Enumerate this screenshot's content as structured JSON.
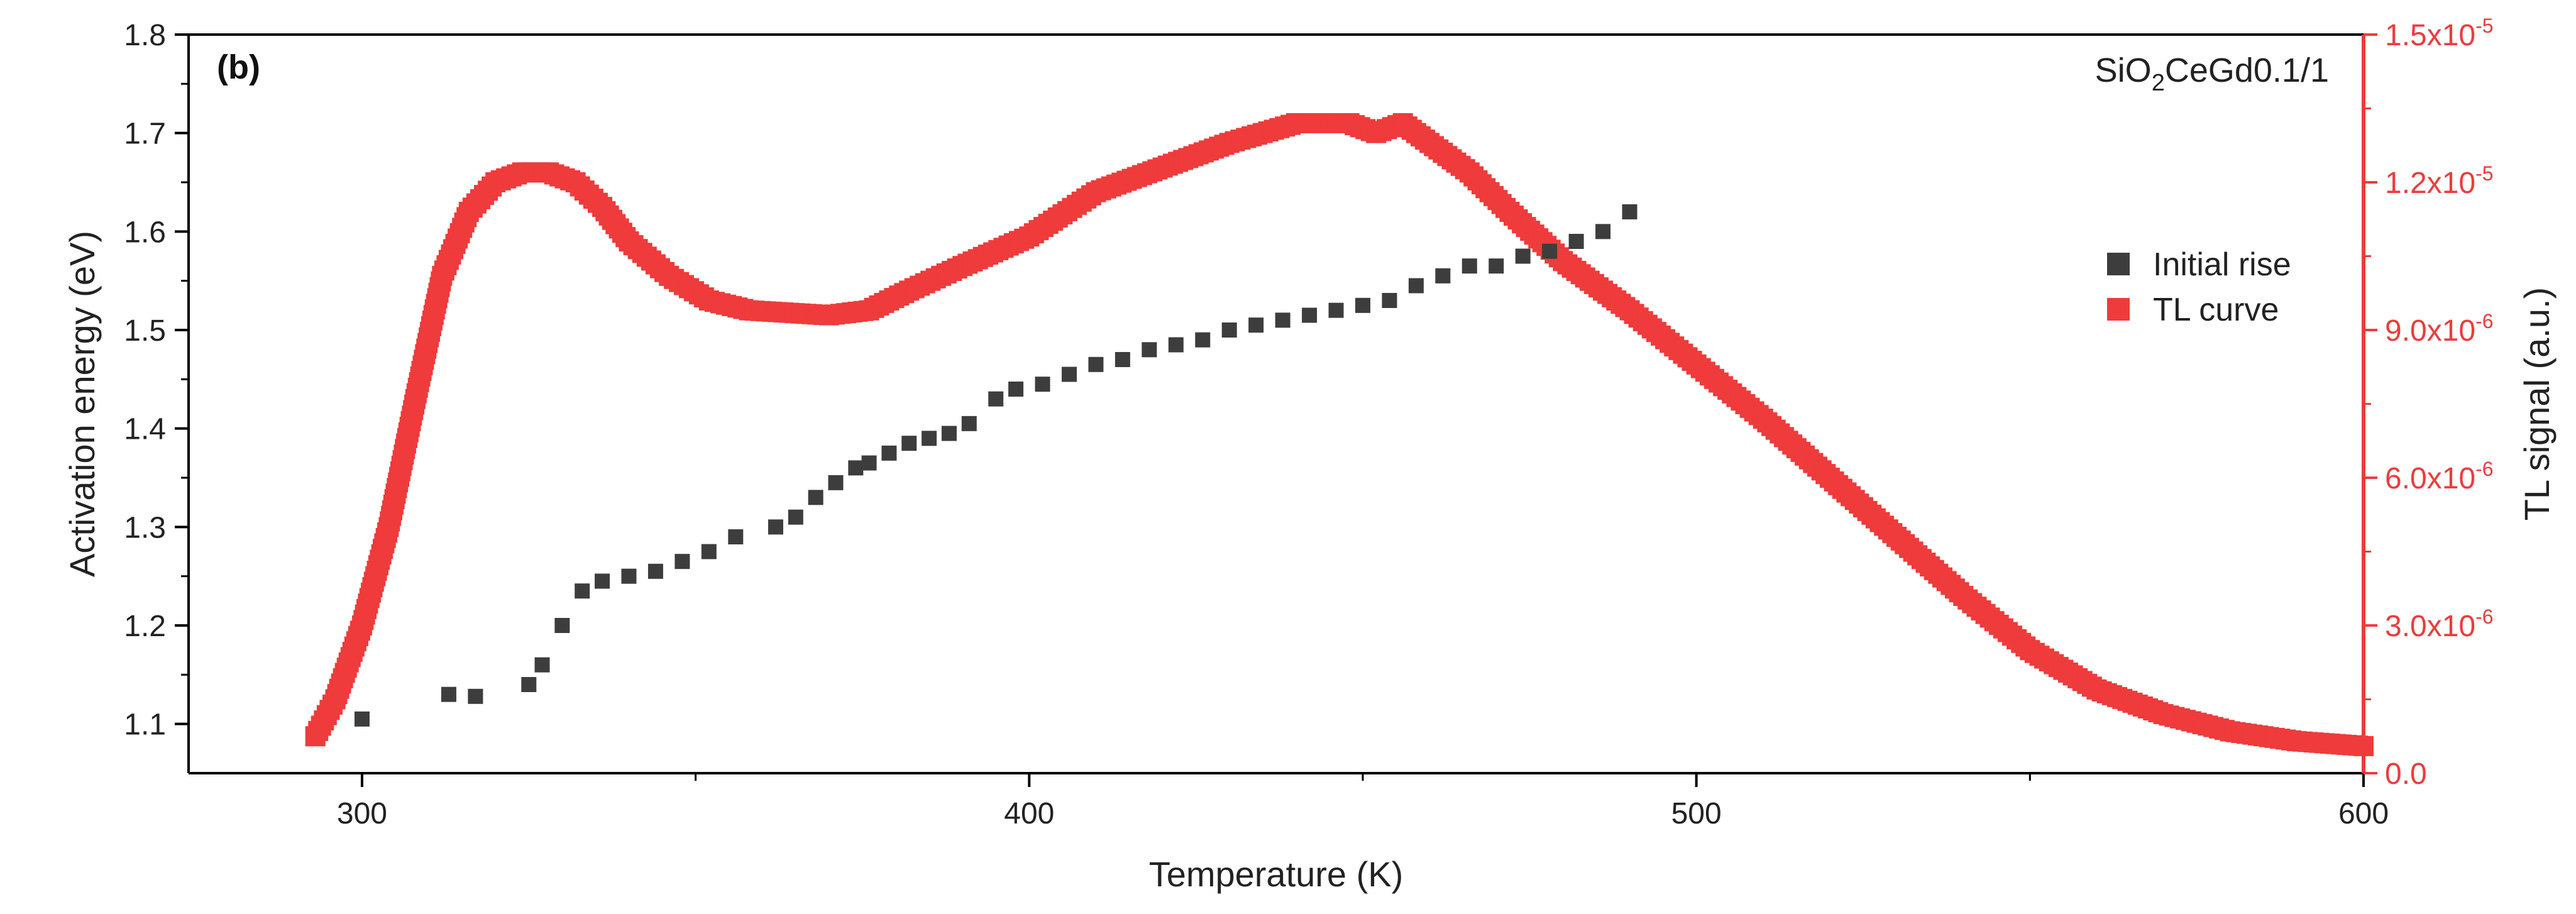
{
  "colors": {
    "initial_rise": "#3d3d3d",
    "tl_curve": "#ef3b3b",
    "axis": "#000000",
    "tl_axis": "#ef3b3b"
  },
  "chart_data": [
    {
      "type": "scatter",
      "panel_label": "(b)",
      "sample_label": {
        "main": "SiO",
        "sub": "2",
        "rest": "CeGd0.1/1"
      },
      "xlabel": "Temperature (K)",
      "ylabel_left": "Activation energy (eV)",
      "ylabel_right": "TL signal (a.u.)",
      "xlim": [
        274,
        600
      ],
      "ylim_left": [
        1.05,
        1.8
      ],
      "ylim_right": [
        0,
        1.5e-05
      ],
      "x_ticks": [
        "300",
        "400",
        "500",
        "600"
      ],
      "y_left_ticks": [
        "1.1",
        "1.2",
        "1.3",
        "1.4",
        "1.5",
        "1.6",
        "1.7",
        "1.8"
      ],
      "y_right_ticks": [
        "0.0",
        "3.0x10",
        "6.0x10",
        "9.0x10",
        "1.2x10",
        "1.5x10"
      ],
      "y_right_tick_exps": [
        "",
        "-6",
        "-6",
        "-6",
        "-5",
        "-5"
      ],
      "legend": [
        "Initial rise",
        "TL curve"
      ],
      "legend_position": "upper-right",
      "series": [
        {
          "name": "Initial rise",
          "axis": "left",
          "x": [
            300,
            313,
            317,
            325,
            327,
            330,
            333,
            336,
            340,
            344,
            348,
            352,
            356,
            362,
            365,
            368,
            371,
            374,
            376,
            379,
            382,
            385,
            388,
            391,
            395,
            398,
            402,
            406,
            410,
            414,
            418,
            422,
            426,
            430,
            434,
            438,
            442,
            446,
            450,
            454,
            458,
            462,
            466,
            470,
            474,
            478,
            482,
            486,
            490
          ],
          "values": [
            1.105,
            1.13,
            1.128,
            1.14,
            1.16,
            1.2,
            1.235,
            1.245,
            1.25,
            1.255,
            1.265,
            1.275,
            1.29,
            1.3,
            1.31,
            1.33,
            1.345,
            1.36,
            1.365,
            1.375,
            1.385,
            1.39,
            1.395,
            1.405,
            1.43,
            1.44,
            1.445,
            1.455,
            1.465,
            1.47,
            1.48,
            1.485,
            1.49,
            1.5,
            1.505,
            1.51,
            1.515,
            1.52,
            1.525,
            1.53,
            1.545,
            1.555,
            1.565,
            1.565,
            1.575,
            1.58,
            1.59,
            1.6,
            1.62
          ]
        },
        {
          "name": "TL curve",
          "axis": "right",
          "x": [
            293,
            296,
            300,
            304,
            308,
            312,
            316,
            320,
            324,
            328,
            332,
            336,
            340,
            346,
            352,
            358,
            364,
            370,
            376,
            382,
            390,
            400,
            410,
            420,
            430,
            440,
            448,
            452,
            456,
            460,
            466,
            472,
            480,
            490,
            500,
            510,
            520,
            530,
            540,
            550,
            560,
            570,
            580,
            590,
            600
          ],
          "values": [
            7.5e-07,
            1.5e-06,
            3e-06,
            5e-06,
            7.6e-06,
            1.01e-05,
            1.14e-05,
            1.2e-05,
            1.22e-05,
            1.22e-05,
            1.2e-05,
            1.15e-05,
            1.08e-05,
            1.01e-05,
            9.6e-06,
            9.4e-06,
            9.35e-06,
            9.3e-06,
            9.4e-06,
            9.8e-06,
            1.03e-05,
            1.09e-05,
            1.18e-05,
            1.23e-05,
            1.28e-05,
            1.32e-05,
            1.32e-05,
            1.3e-05,
            1.32e-05,
            1.28e-05,
            1.22e-05,
            1.14e-05,
            1.04e-05,
            9.4e-06,
            8.3e-06,
            7.2e-06,
            6e-06,
            4.8e-06,
            3.6e-06,
            2.5e-06,
            1.7e-06,
            1.2e-06,
            8.5e-07,
            6.5e-07,
            5.5e-07
          ]
        }
      ]
    }
  ]
}
